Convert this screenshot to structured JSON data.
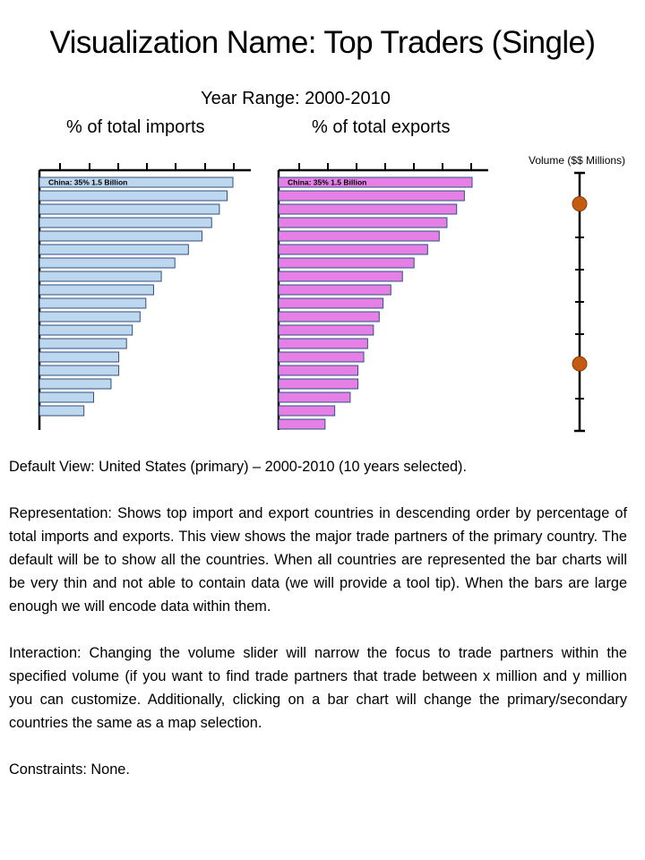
{
  "title": "Visualization Name: Top Traders (Single)",
  "year_range": "Year Range: 2000-2010",
  "imports_heading": "% of total imports",
  "exports_heading": "% of total exports",
  "volume_label": "Volume ($$ Millions)",
  "colors": {
    "imports_bar": "#bdd7ee",
    "exports_bar": "#e680e6",
    "bar_stroke": "#2f4f7f",
    "slider_handle": "#c55a11"
  },
  "chart_data": [
    {
      "type": "bar",
      "orientation": "horizontal",
      "bar_annotation": "China: 35% 1.5 Billion",
      "values": [
        100,
        97,
        93,
        89,
        84,
        77,
        70,
        63,
        59,
        55,
        52,
        48,
        45,
        41,
        41,
        37,
        28,
        23
      ],
      "color": "#bdd7ee"
    },
    {
      "type": "bar",
      "orientation": "horizontal",
      "bar_annotation": "China: 35% 1.5 Billion",
      "values": [
        100,
        96,
        92,
        87,
        83,
        77,
        70,
        64,
        58,
        54,
        52,
        49,
        46,
        44,
        41,
        41,
        37,
        29,
        24
      ],
      "color": "#e680e6"
    }
  ],
  "volume_slider": {
    "tick_count": 7,
    "handle_positions": [
      0.12,
      0.74
    ]
  },
  "paragraphs": {
    "default_view": "Default View: United States (primary) – 2000-2010 (10 years selected).",
    "representation": "Representation: Shows top import and export countries in descending order by percentage of total imports and exports. This view shows the major trade partners of the primary country. The default will be to show all the countries. When all countries are represented the bar charts will be very thin and not able to contain data (we will provide a tool tip). When the bars are large enough we will encode data within them.",
    "interaction": "Interaction: Changing the volume slider will narrow the focus to trade partners within the specified volume (if you want to find trade partners that trade between x million and y million you can customize. Additionally, clicking on a bar chart will change the primary/secondary countries the same as a map selection.",
    "constraints": "Constraints: None."
  }
}
